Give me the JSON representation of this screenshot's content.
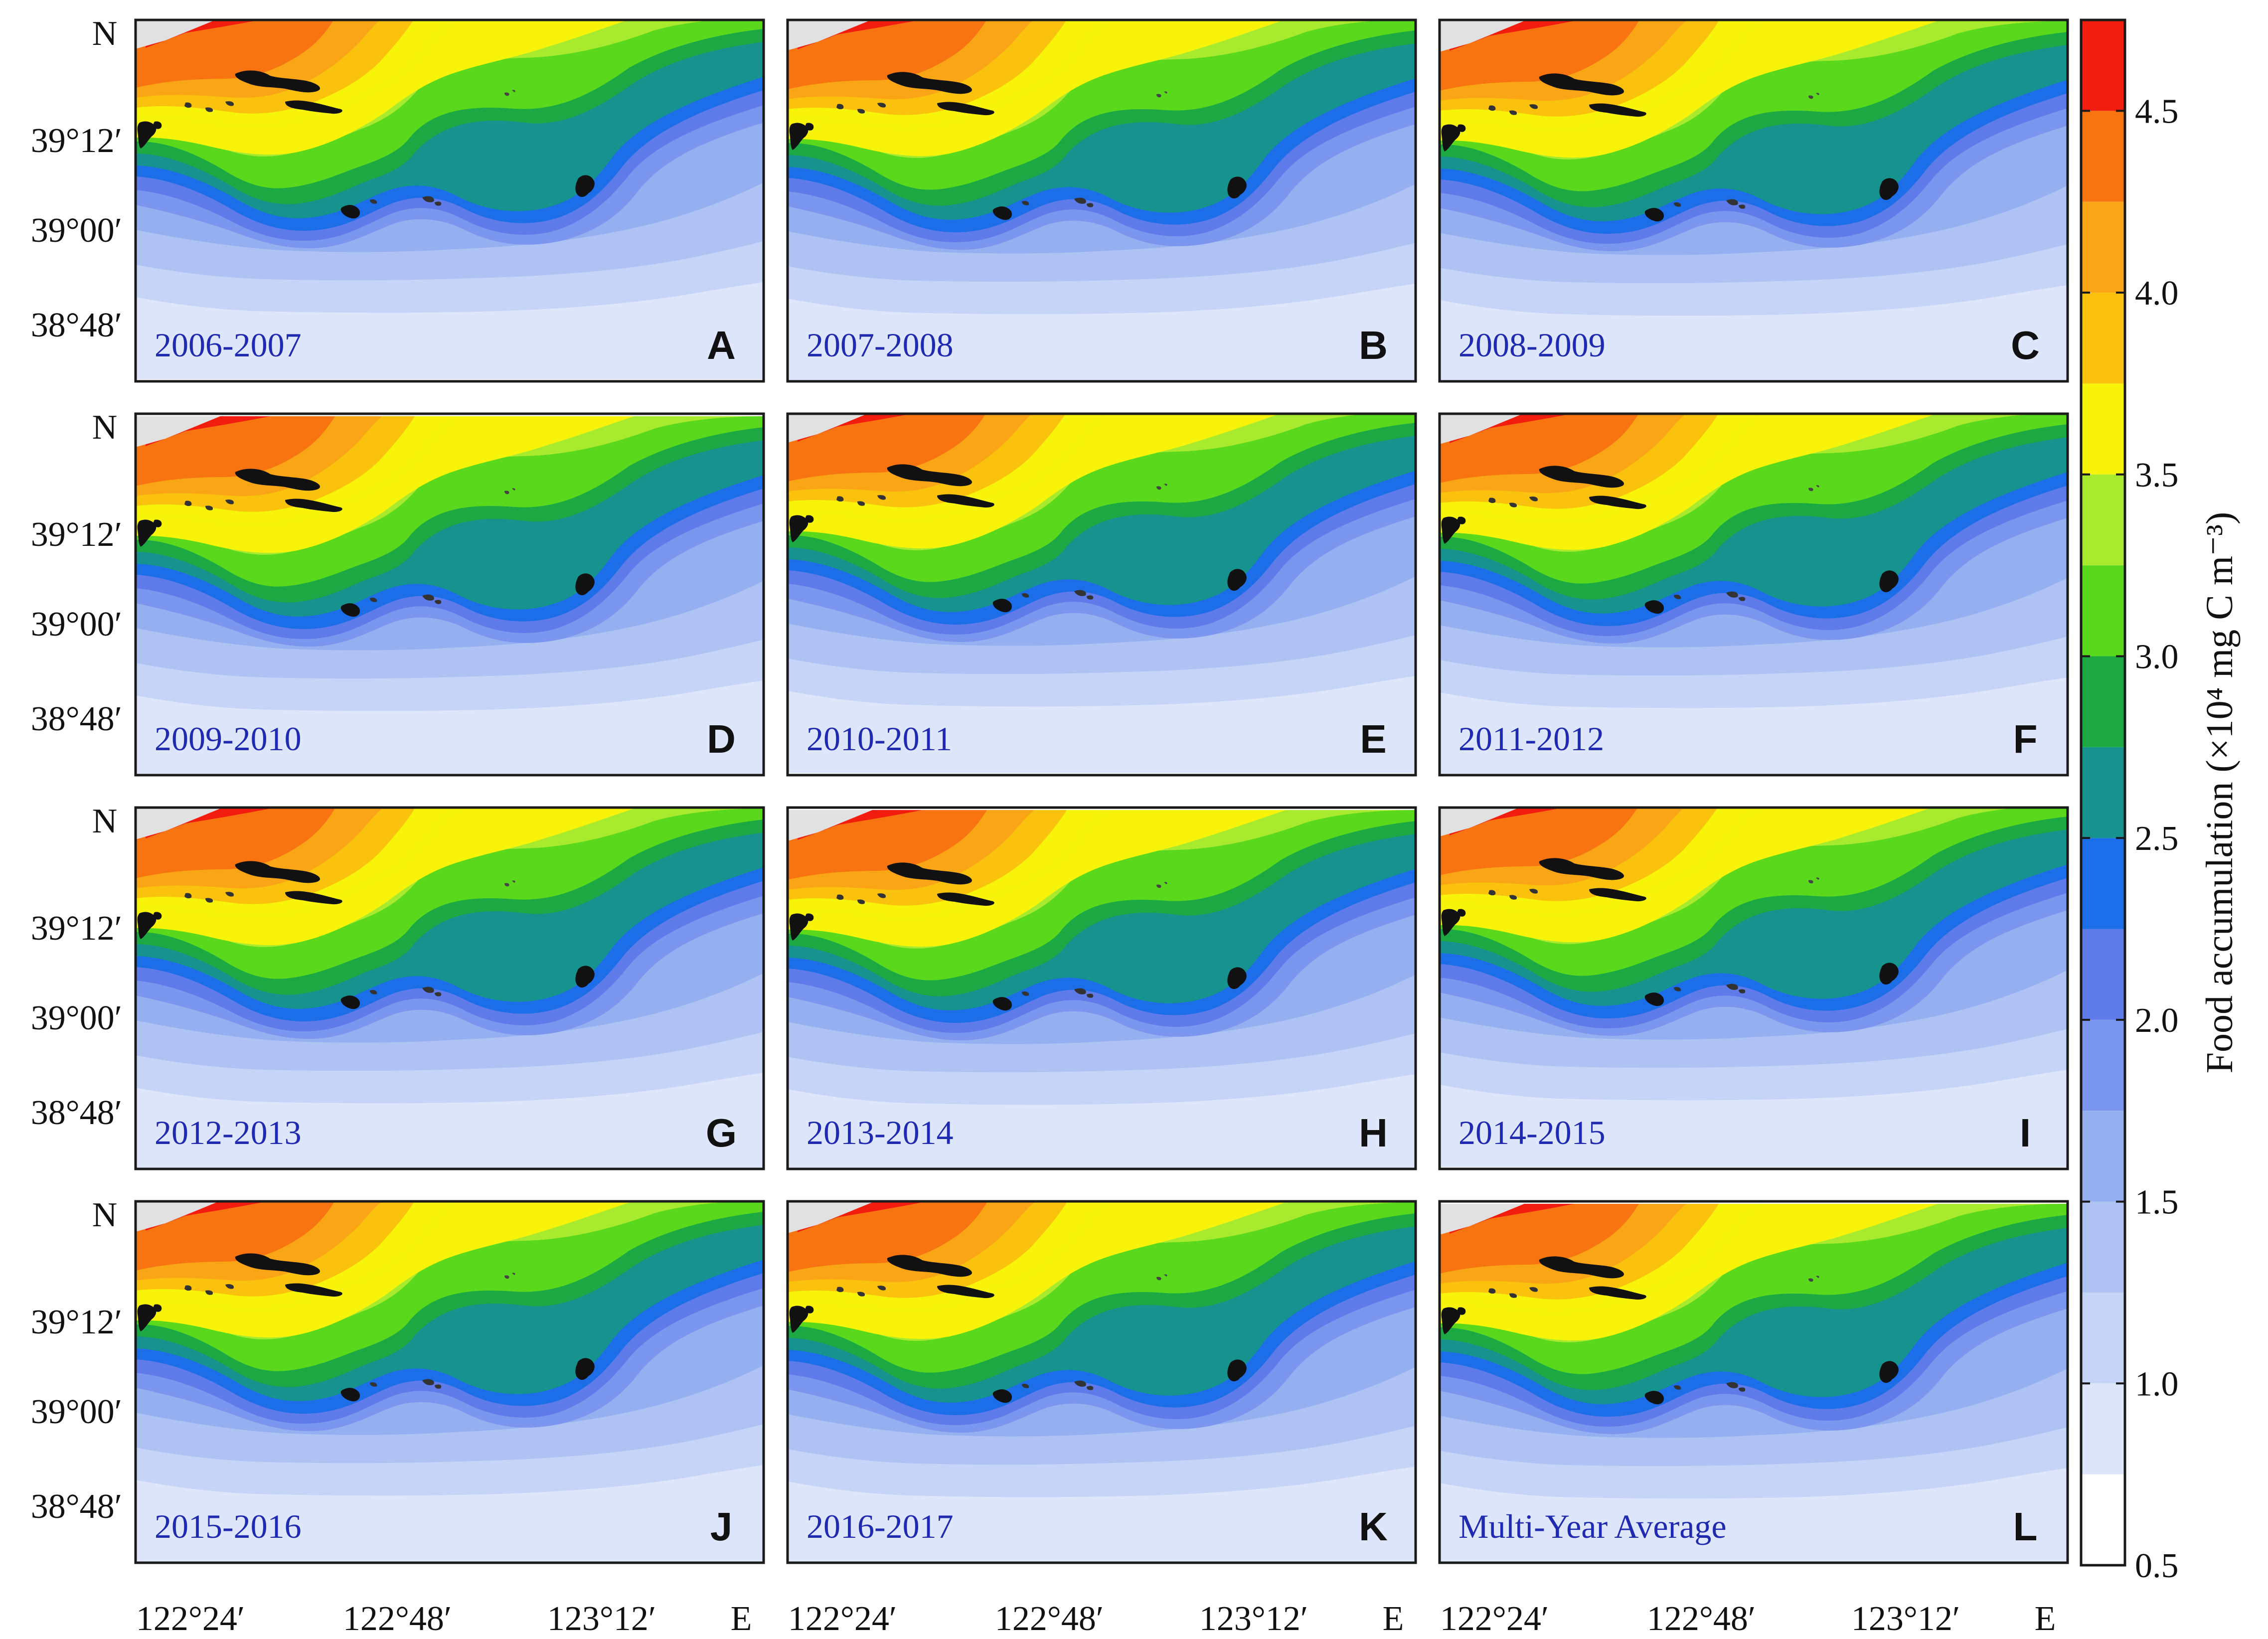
{
  "figure": {
    "colorbar": {
      "label": "Food accumulation (×10⁴ mg C m⁻³)",
      "ticks": [
        "0.5",
        "1.0",
        "1.5",
        "2.0",
        "2.5",
        "3.0",
        "3.5",
        "4.0",
        "4.5"
      ],
      "range": [
        0.5,
        4.75
      ],
      "levels": [
        {
          "value": 0.5,
          "color": "#ffffff"
        },
        {
          "value": 0.75,
          "color": "#dde6fa"
        },
        {
          "value": 1.0,
          "color": "#c6d5f7"
        },
        {
          "value": 1.25,
          "color": "#aec3f4"
        },
        {
          "value": 1.5,
          "color": "#95b0f1"
        },
        {
          "value": 1.75,
          "color": "#7a96ee"
        },
        {
          "value": 2.0,
          "color": "#5f7bea"
        },
        {
          "value": 2.25,
          "color": "#1c6ee8"
        },
        {
          "value": 2.5,
          "color": "#16938e"
        },
        {
          "value": 2.75,
          "color": "#1ca944"
        },
        {
          "value": 3.0,
          "color": "#5ad91c"
        },
        {
          "value": 3.25,
          "color": "#a8ea2e"
        },
        {
          "value": 3.5,
          "color": "#f7f40a"
        },
        {
          "value": 3.75,
          "color": "#fbc20d"
        },
        {
          "value": 4.0,
          "color": "#f9a516"
        },
        {
          "value": 4.25,
          "color": "#f77410"
        },
        {
          "value": 4.5,
          "color": "#f31d0f"
        }
      ]
    },
    "lat_labels": [
      "39°12′",
      "39°00′",
      "38°48′"
    ],
    "lat_north": "N",
    "lon_labels": [
      "122°24′",
      "122°48′",
      "123°12′"
    ],
    "lon_east": "E",
    "panels": [
      {
        "letter": "A",
        "period": "2006-2007"
      },
      {
        "letter": "B",
        "period": "2007-2008"
      },
      {
        "letter": "C",
        "period": "2008-2009"
      },
      {
        "letter": "D",
        "period": "2009-2010"
      },
      {
        "letter": "E",
        "period": "2010-2011"
      },
      {
        "letter": "F",
        "period": "2011-2012"
      },
      {
        "letter": "G",
        "period": "2012-2013"
      },
      {
        "letter": "H",
        "period": "2013-2014"
      },
      {
        "letter": "I",
        "period": "2014-2015"
      },
      {
        "letter": "J",
        "period": "2015-2016"
      },
      {
        "letter": "K",
        "period": "2016-2017"
      },
      {
        "letter": "L",
        "period": "Multi-Year Average"
      }
    ],
    "colors": {
      "land": "#111111",
      "nodata": "#e1e1e1",
      "frame": "#1a1a1a",
      "period_text": "#1f2ab0"
    }
  }
}
